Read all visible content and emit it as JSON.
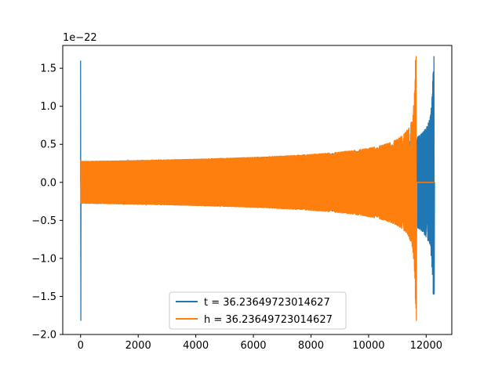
{
  "chart_data": {
    "type": "line",
    "title": "",
    "xlabel": "",
    "ylabel": "",
    "xlim": [
      -620,
      12890
    ],
    "ylim": [
      -2.0,
      1.8
    ],
    "y_offset_label": "1e−22",
    "x_ticks": [
      0,
      2000,
      4000,
      6000,
      8000,
      10000,
      12000
    ],
    "x_tick_labels": [
      "0",
      "2000",
      "4000",
      "6000",
      "8000",
      "10000",
      "12000"
    ],
    "y_ticks": [
      -2.0,
      -1.5,
      -1.0,
      -0.5,
      0.0,
      0.5,
      1.0,
      1.5
    ],
    "y_tick_labels": [
      "−2.0",
      "−1.5",
      "−1.0",
      "−0.5",
      "0.0",
      "0.5",
      "1.0",
      "1.5"
    ],
    "grid": false,
    "legend_position": "lower-center",
    "series": [
      {
        "name": "t = 36.23649723014627",
        "color": "#1f77b4",
        "description_points": {
          "x": [
            0,
            10,
            500,
            4000,
            8000,
            10000,
            11500,
            11700,
            12000,
            12200,
            12270,
            12300,
            12890
          ],
          "envelope": [
            1.6,
            0.3,
            0.3,
            0.32,
            0.38,
            0.45,
            0.5,
            0.55,
            0.6,
            0.9,
            1.66,
            0.0,
            0.0
          ]
        },
        "chirp_start": 0,
        "chirp_end": 12270,
        "peak_pos": 1.66,
        "peak_neg": -1.47,
        "initial_spike_pos": 1.6,
        "initial_spike_neg": -1.82
      },
      {
        "name": "h = 36.23649723014627",
        "color": "#ff7f0e",
        "description_points": {
          "x": [
            0,
            10,
            500,
            4000,
            8000,
            10000,
            11000,
            11500,
            11650,
            11700,
            12270
          ],
          "envelope": [
            0.28,
            0.28,
            0.28,
            0.3,
            0.35,
            0.42,
            0.52,
            0.9,
            1.66,
            0.0,
            0.0
          ]
        },
        "chirp_start": 0,
        "chirp_end": 11650,
        "peak_pos": 1.66,
        "peak_neg": -1.82
      }
    ]
  }
}
